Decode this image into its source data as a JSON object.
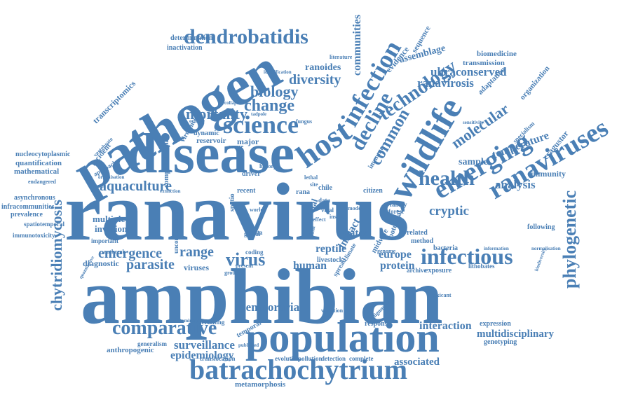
{
  "colors": {
    "word": "#4a7fb5",
    "background": "#ffffff"
  },
  "words": [
    "ranavirus",
    "amphibian",
    "disease",
    "pathogen",
    "population",
    "batrachochytrium",
    "wildlife",
    "host",
    "infection",
    "emerging",
    "ranaviruses",
    "science",
    "infectious",
    "decline",
    "dendrobatidis",
    "health",
    "technology",
    "phylogenetic",
    "comparative",
    "common",
    "molecular",
    "virus",
    "change",
    "mortality",
    "biology",
    "diversity",
    "chytridiomycosis",
    "aquaculture",
    "emergence",
    "parasite",
    "range",
    "temporaria",
    "surveillance",
    "epidemiology",
    "analysis",
    "interaction",
    "cryptic",
    "ultraconserved",
    "ranavirosis",
    "communities",
    "assemblage",
    "temperature",
    "multidisciplinary",
    "reptile",
    "human",
    "europe",
    "protein",
    "impact",
    "water",
    "associated",
    "metamorphosis",
    "ranoides",
    "sample",
    "immunity",
    "cragustor",
    "determination",
    "inactivation",
    "transcriptomics",
    "incident",
    "quantification",
    "mathematical",
    "infracommunities",
    "multiple",
    "invasion",
    "diagnostic",
    "viruses",
    "reservoir",
    "major",
    "computational",
    "dynamic",
    "virulence",
    "anthropogenic",
    "generalism",
    "livestock",
    "spatio",
    "recent",
    "driver",
    "chile",
    "rana",
    "citizen",
    "evidence",
    "sequence",
    "organization",
    "biomedicine",
    "transmission",
    "adaptation",
    "animal",
    "potential",
    "midwife",
    "related",
    "method",
    "bacteria",
    "exposure",
    "archive",
    "genotyping",
    "expression",
    "response",
    "detection",
    "complete",
    "pollution",
    "evolution",
    "translocation",
    "screening",
    "temporal",
    "genome",
    "spread",
    "global",
    "family",
    "forest",
    "following",
    "endangered",
    "nucleocytoplasmic",
    "asynchronous",
    "prevalence",
    "spatiotemporal",
    "immunotoxicity",
    "outbreak",
    "important",
    "approach",
    "unconventional",
    "grouper",
    "present",
    "coding",
    "costa",
    "data",
    "viral",
    "lithobates",
    "toxicant",
    "alignment",
    "variation",
    "insect",
    "model",
    "immune",
    "fish",
    "climate",
    "literature",
    "identification",
    "collapse",
    "tadpole",
    "fungus",
    "severe",
    "history",
    "effect",
    "sensitivity",
    "specialism",
    "ecology",
    "vertebrate",
    "organisation",
    "extinction",
    "contaminant",
    "published",
    "quantitative",
    "normalisation",
    "information",
    "biodiversity",
    "site",
    "lethal",
    "world"
  ]
}
